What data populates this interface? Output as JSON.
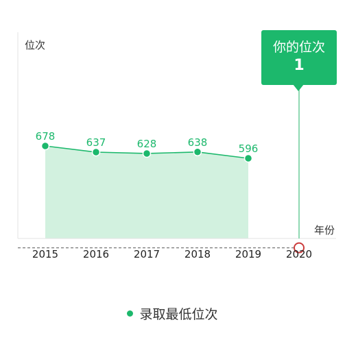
{
  "chart_data": {
    "type": "line",
    "xlabel": "年份",
    "ylabel": "位次",
    "categories": [
      "2015",
      "2016",
      "2017",
      "2018",
      "2019",
      "2020"
    ],
    "series": [
      {
        "name": "录取最低位次",
        "values": [
          678,
          637,
          628,
          638,
          596,
          null
        ]
      }
    ],
    "highlight": {
      "x": "2020",
      "title": "你的位次",
      "value": 1
    },
    "colors": {
      "line": "#1cb86c",
      "area": "#d2f1df",
      "marker_highlight": "#cc3b3b",
      "dashed_line": "#777777"
    },
    "grid": false,
    "legend_position": "bottom"
  }
}
